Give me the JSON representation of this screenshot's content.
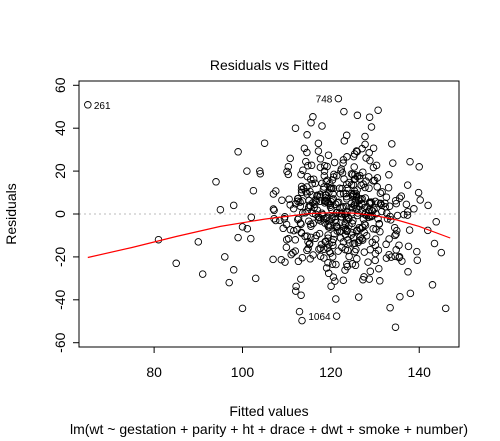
{
  "chart_data": {
    "type": "scatter",
    "title": "Residuals vs Fitted",
    "xlabel": "Fitted values",
    "ylabel": "Residuals",
    "subtitle": "lm(wt ~ gestation + parity + ht + drace + dwt + smoke + number)",
    "xlim": [
      63,
      149
    ],
    "ylim": [
      -62,
      62
    ],
    "xticks": [
      80,
      100,
      120,
      140
    ],
    "yticks": [
      -60,
      -40,
      -20,
      0,
      20,
      40,
      60
    ],
    "reference_line": 0,
    "labeled_points": [
      {
        "label": "261",
        "x": 65.0,
        "y": 50.9
      },
      {
        "label": "748",
        "x": 121.7,
        "y": 53.8
      },
      {
        "label": "1064",
        "x": 121.3,
        "y": -47.6
      }
    ],
    "smoother": {
      "color": "#ff0000",
      "x": [
        65,
        75,
        85,
        95,
        105,
        115,
        120,
        125,
        130,
        135,
        140,
        147
      ],
      "y": [
        -20.3,
        -15.6,
        -10.5,
        -5.8,
        -2.4,
        0.2,
        0.6,
        0.4,
        -0.7,
        -2.8,
        -5.8,
        -11.2
      ]
    },
    "point_count": 470
  },
  "colors": {
    "points": "#000000",
    "smoother": "#ff0000",
    "reference": "#bbbbbb"
  }
}
